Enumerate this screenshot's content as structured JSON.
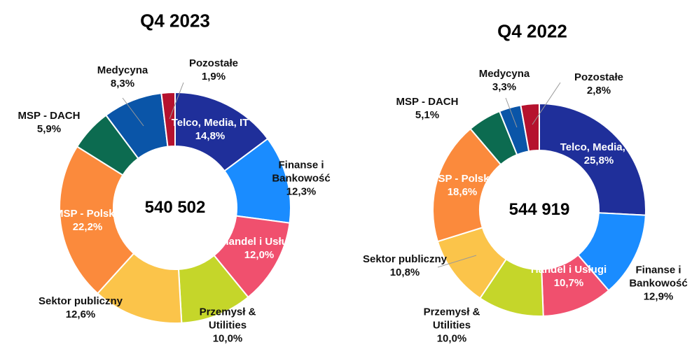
{
  "chart_data": [
    {
      "type": "pie",
      "title": "Q4 2023",
      "center_label": "540 502",
      "categories": [
        "Telco, Media, IT",
        "Finanse i Bankowość",
        "Handel i Usługi",
        "Przemysł & Utilities",
        "Sektor publiczny",
        "MSP - Polska",
        "MSP - DACH",
        "Medycyna",
        "Pozostałe"
      ],
      "values": [
        14.8,
        12.3,
        12.0,
        10.0,
        12.6,
        22.2,
        5.9,
        8.3,
        1.9
      ],
      "value_labels": [
        "14,8%",
        "12,3%",
        "12,0%",
        "10,0%",
        "12,6%",
        "22,2%",
        "5,9%",
        "8,3%",
        "1,9%"
      ],
      "colors": [
        "#1f2f9a",
        "#1a8cff",
        "#f0506e",
        "#c5d62a",
        "#fbc44a",
        "#fb8a3c",
        "#0c6b50",
        "#0a55a8",
        "#b5122e"
      ]
    },
    {
      "type": "pie",
      "title": "Q4 2022",
      "center_label": "544 919",
      "categories": [
        "Telco, Media, IT",
        "Finanse i Bankowość",
        "Handel i Usługi",
        "Przemysł & Utilities",
        "Sektor publiczny",
        "MSP - Polska",
        "MSP - DACH",
        "Medycyna",
        "Pozostałe"
      ],
      "values": [
        25.8,
        12.9,
        10.7,
        10.0,
        10.8,
        18.6,
        5.1,
        3.3,
        2.8
      ],
      "value_labels": [
        "25,8%",
        "12,9%",
        "10,7%",
        "10,0%",
        "10,8%",
        "18,6%",
        "5,1%",
        "3,3%",
        "2,8%"
      ],
      "colors": [
        "#1f2f9a",
        "#1a8cff",
        "#f0506e",
        "#c5d62a",
        "#fbc44a",
        "#fb8a3c",
        "#0c6b50",
        "#0a55a8",
        "#b5122e"
      ]
    }
  ]
}
